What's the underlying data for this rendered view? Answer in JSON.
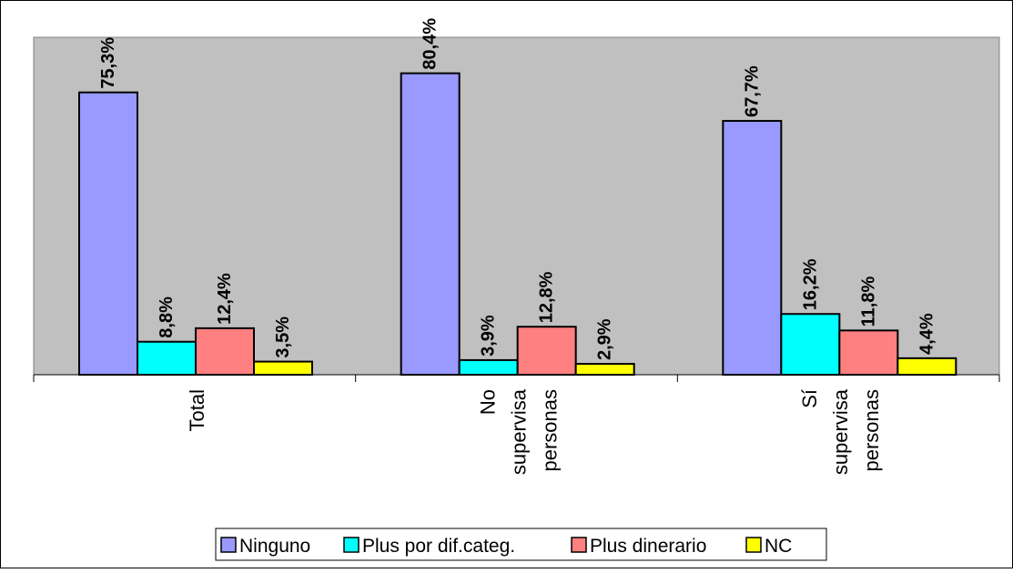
{
  "chart_data": {
    "type": "bar",
    "categories": [
      [
        "Total"
      ],
      [
        "No",
        "supervisa",
        "personas"
      ],
      [
        "Sí",
        "supervisa",
        "personas"
      ]
    ],
    "series": [
      {
        "name": "Ninguno",
        "color": "#9999ff",
        "values": [
          75.3,
          80.4,
          67.7
        ],
        "labels": [
          "75,3%",
          "80,4%",
          "67,7%"
        ]
      },
      {
        "name": "Plus por dif.categ.",
        "color": "#00ffff",
        "values": [
          8.8,
          3.9,
          16.2
        ],
        "labels": [
          "8,8%",
          "3,9%",
          "16,2%"
        ]
      },
      {
        "name": "Plus dinerario",
        "color": "#ff8080",
        "values": [
          12.4,
          12.8,
          11.8
        ],
        "labels": [
          "12,4%",
          "12,8%",
          "11,8%"
        ]
      },
      {
        "name": "NC",
        "color": "#ffff00",
        "values": [
          3.5,
          2.9,
          4.4
        ],
        "labels": [
          "3,5%",
          "2,9%",
          "4,4%"
        ]
      }
    ],
    "title": "",
    "xlabel": "",
    "ylabel": "",
    "ylim": [
      0,
      90
    ],
    "grid": false,
    "legend_position": "bottom",
    "plot_background": "#c0c0c0"
  }
}
